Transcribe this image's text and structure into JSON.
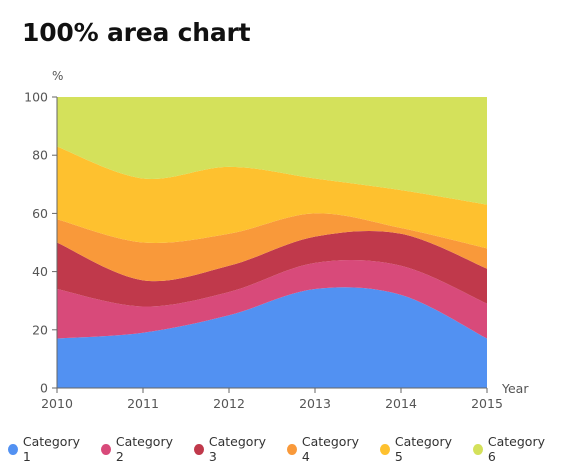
{
  "chart_data": {
    "type": "area",
    "stacking": "percent",
    "title": "100% area chart",
    "ylabel": "%",
    "xlabel": "Year",
    "categories": [
      "2010",
      "2011",
      "2012",
      "2013",
      "2014",
      "2015"
    ],
    "ylim": [
      0,
      100
    ],
    "yticks": [
      "0",
      "20",
      "40",
      "60",
      "80",
      "100"
    ],
    "grid": false,
    "legend_position": "bottom",
    "series": [
      {
        "name": "Category 1",
        "color": "#5291f2",
        "values": [
          17,
          19,
          25,
          34,
          32,
          17
        ]
      },
      {
        "name": "Category 2",
        "color": "#d84a7a",
        "values": [
          17,
          9,
          8,
          9,
          10,
          12
        ]
      },
      {
        "name": "Category 3",
        "color": "#c0394b",
        "values": [
          16,
          9,
          9,
          9,
          11,
          12
        ]
      },
      {
        "name": "Category 4",
        "color": "#f9993a",
        "values": [
          8,
          13,
          11,
          8,
          2,
          7
        ]
      },
      {
        "name": "Category 5",
        "color": "#fec12f",
        "values": [
          25,
          22,
          23,
          12,
          13,
          15
        ]
      },
      {
        "name": "Category 6",
        "color": "#d4e15b",
        "values": [
          17,
          28,
          24,
          28,
          32,
          37
        ]
      }
    ]
  }
}
